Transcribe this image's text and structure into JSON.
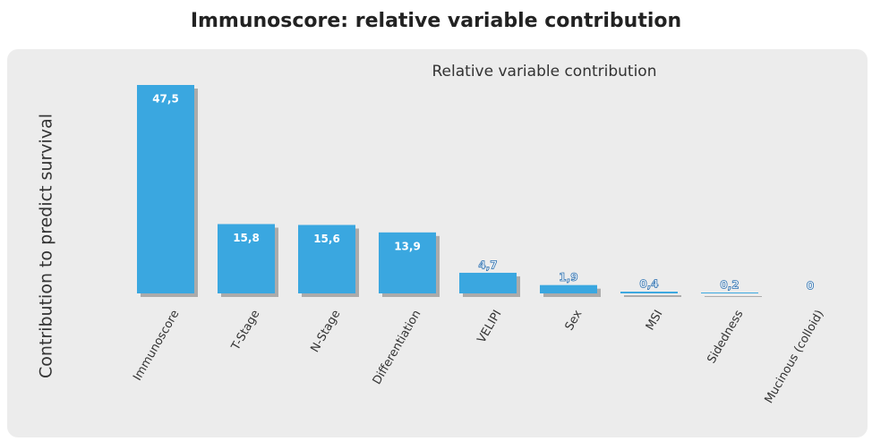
{
  "chart_data": {
    "type": "bar",
    "title": "Immunoscore: relative variable contribution",
    "subtitle": "Relative variable contribution",
    "y_label": "Contribution to predict survival",
    "categories": [
      "Immunoscore",
      "T-Stage",
      "N-Stage",
      "Differentiation",
      "VELIPI",
      "Sex",
      "MSI",
      "Sidedness",
      "Mucinous (colloid)"
    ],
    "values": [
      47.5,
      15.8,
      15.6,
      13.9,
      4.7,
      1.9,
      0.4,
      0.2,
      0
    ],
    "value_labels": [
      "47,5",
      "15,8",
      "15,6",
      "13,9",
      "4,7",
      "1,9",
      "0,4",
      "0,2",
      "0"
    ],
    "color": "#3aa7e0"
  }
}
